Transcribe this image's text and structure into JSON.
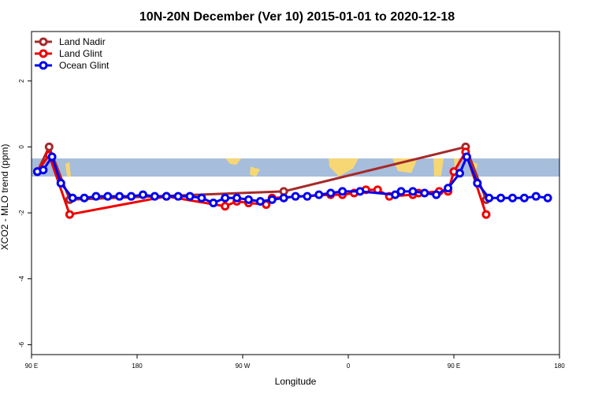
{
  "chart_data": {
    "type": "line",
    "title": "10N-20N December (Ver 10)   2015-01-01 to 2020-12-18",
    "xlabel": "Longitude",
    "ylabel": "XCO2 - MLO trend (ppm)",
    "xlim": [
      90,
      540
    ],
    "ylim": [
      -6.3,
      3.5
    ],
    "x_ticks": [
      {
        "value": 90,
        "label": "90 E"
      },
      {
        "value": 180,
        "label": "180"
      },
      {
        "value": 270,
        "label": "90 W"
      },
      {
        "value": 360,
        "label": "0"
      },
      {
        "value": 450,
        "label": "90 E"
      },
      {
        "value": 540,
        "label": "180"
      }
    ],
    "y_ticks": [
      {
        "value": -6,
        "label": "-6"
      },
      {
        "value": -4,
        "label": "-4"
      },
      {
        "value": -2,
        "label": "-2"
      },
      {
        "value": 0,
        "label": "0"
      },
      {
        "value": 2,
        "label": "2"
      }
    ],
    "map_band": {
      "ymin": -0.9,
      "ymax": -0.35,
      "ocean_color": "#a6bddb",
      "land_color": "#f7d774"
    },
    "legend_position": "top-left",
    "series": [
      {
        "name": "Land Nadir",
        "color": "#a52a2a",
        "points": [
          [
            95,
            -0.75
          ],
          [
            105,
            0.0
          ],
          [
            122.5,
            -1.6
          ],
          [
            305,
            -1.35
          ],
          [
            460,
            0.0
          ],
          [
            477.5,
            -1.6
          ]
        ]
      },
      {
        "name": "Land Glint",
        "color": "#ee0000",
        "points": [
          [
            95,
            -0.75
          ],
          [
            105,
            -0.25
          ],
          [
            122.5,
            -2.05
          ],
          [
            205,
            -1.5
          ],
          [
            255,
            -1.8
          ],
          [
            265,
            -1.65
          ],
          [
            275,
            -1.7
          ],
          [
            290,
            -1.75
          ],
          [
            295,
            -1.55
          ],
          [
            345,
            -1.45
          ],
          [
            355,
            -1.45
          ],
          [
            365,
            -1.4
          ],
          [
            375,
            -1.3
          ],
          [
            385,
            -1.3
          ],
          [
            395,
            -1.5
          ],
          [
            415,
            -1.45
          ],
          [
            420,
            -1.4
          ],
          [
            437.5,
            -1.35
          ],
          [
            445,
            -1.35
          ],
          [
            450,
            -0.75
          ],
          [
            460,
            -0.15
          ],
          [
            477.5,
            -2.05
          ]
        ]
      },
      {
        "name": "Ocean Glint",
        "color": "#0000ee",
        "points": [
          [
            95,
            -0.75
          ],
          [
            100,
            -0.7
          ],
          [
            107.5,
            -0.3
          ],
          [
            115,
            -1.1
          ],
          [
            125,
            -1.55
          ],
          [
            135,
            -1.55
          ],
          [
            145,
            -1.5
          ],
          [
            155,
            -1.5
          ],
          [
            165,
            -1.5
          ],
          [
            175,
            -1.5
          ],
          [
            185,
            -1.45
          ],
          [
            195,
            -1.5
          ],
          [
            205,
            -1.5
          ],
          [
            215,
            -1.5
          ],
          [
            225,
            -1.5
          ],
          [
            235,
            -1.55
          ],
          [
            245,
            -1.7
          ],
          [
            255,
            -1.55
          ],
          [
            265,
            -1.55
          ],
          [
            275,
            -1.6
          ],
          [
            285,
            -1.65
          ],
          [
            295,
            -1.6
          ],
          [
            305,
            -1.55
          ],
          [
            315,
            -1.5
          ],
          [
            325,
            -1.5
          ],
          [
            335,
            -1.45
          ],
          [
            345,
            -1.4
          ],
          [
            355,
            -1.35
          ],
          [
            370,
            -1.35
          ],
          [
            400,
            -1.45
          ],
          [
            405,
            -1.35
          ],
          [
            415,
            -1.35
          ],
          [
            425,
            -1.4
          ],
          [
            435,
            -1.45
          ],
          [
            445,
            -1.25
          ],
          [
            455,
            -0.8
          ],
          [
            461,
            -0.3
          ],
          [
            470,
            -1.1
          ],
          [
            480,
            -1.55
          ],
          [
            490,
            -1.55
          ],
          [
            500,
            -1.55
          ],
          [
            510,
            -1.55
          ],
          [
            520,
            -1.5
          ],
          [
            530,
            -1.55
          ]
        ]
      }
    ]
  }
}
